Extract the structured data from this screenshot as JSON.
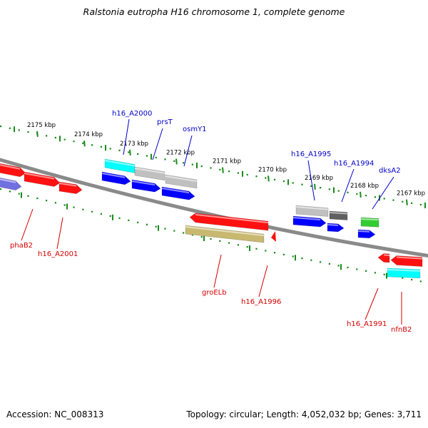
{
  "title": "Ralstonia eutropha H16 chromosome 1, complete genome",
  "footer": {
    "accession": "Accession: NC_008313",
    "stats": "Topology: circular; Length: 4,052,032 bp; Genes: 3,711"
  },
  "colors": {
    "backbone": "#8a8a8a",
    "tick": "#1a8a1a",
    "label_plus": "#0000c8",
    "label_minus": "#d40000",
    "red": "#ff1111",
    "blue": "#0000ff",
    "cyan": "#00ffff",
    "grey": "#c0c0c0",
    "darkgrey": "#606060",
    "green": "#33cc33",
    "olive": "#c8b870",
    "violet": "#7070e0"
  },
  "ticks": [
    {
      "label": "2175 kbp",
      "pos": 2175
    },
    {
      "label": "2174 kbp",
      "pos": 2174
    },
    {
      "label": "2173 kbp",
      "pos": 2173
    },
    {
      "label": "2172 kbp",
      "pos": 2172
    },
    {
      "label": "2171 kbp",
      "pos": 2171
    },
    {
      "label": "2170 kbp",
      "pos": 2170
    },
    {
      "label": "2169 kbp",
      "pos": 2169
    },
    {
      "label": "2168 kbp",
      "pos": 2168
    },
    {
      "label": "2167 kbp",
      "pos": 2167
    }
  ],
  "gene_labels": [
    {
      "name": "h16_A2000",
      "strand": "+"
    },
    {
      "name": "prsT",
      "strand": "+"
    },
    {
      "name": "osmY1",
      "strand": "+"
    },
    {
      "name": "h16_A1995",
      "strand": "+"
    },
    {
      "name": "h16_A1994",
      "strand": "+"
    },
    {
      "name": "dksA2",
      "strand": "+"
    },
    {
      "name": "phaB2",
      "strand": "-"
    },
    {
      "name": "h16_A2001",
      "strand": "-"
    },
    {
      "name": "groELb",
      "strand": "-"
    },
    {
      "name": "h16_A1996",
      "strand": "-"
    },
    {
      "name": "h16_A1991",
      "strand": "-"
    },
    {
      "name": "nfnB2",
      "strand": "-"
    }
  ]
}
